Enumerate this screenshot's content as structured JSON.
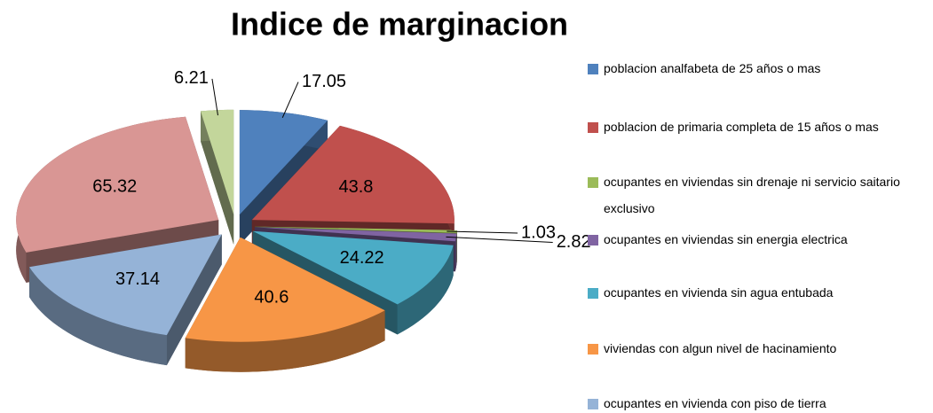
{
  "chart_data": {
    "type": "pie3d",
    "title": "Indice de marginacion",
    "categories": [
      "poblacion analfabeta de 25 años o mas",
      "poblacion de primaria completa de 15 años o mas",
      "ocupantes en viviendas sin drenaje ni servicio saitario exclusivo",
      "ocupantes en viviendas sin energia electrica",
      "ocupantes en vivienda sin agua entubada",
      "viviendas con algun nivel de hacinamiento",
      "ocupantes en vivienda con piso de tierra",
      null,
      null
    ],
    "values": [
      17.05,
      43.8,
      1.03,
      2.82,
      24.22,
      40.6,
      37.14,
      65.32,
      6.21
    ],
    "colors": [
      "#4f81bd",
      "#c0504d",
      "#9bbb59",
      "#8064a2",
      "#4bacc6",
      "#f79646",
      "#95b3d7",
      "#d99694",
      "#c3d69b"
    ],
    "legend": "right"
  }
}
